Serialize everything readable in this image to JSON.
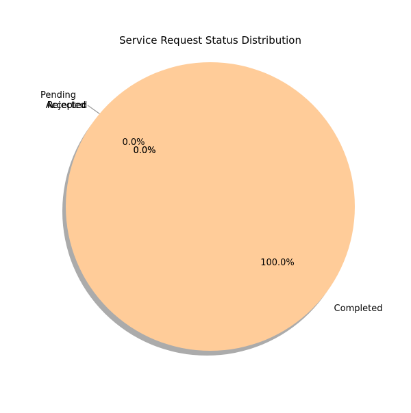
{
  "chart_data": {
    "type": "pie",
    "title": "Service Request Status Distribution",
    "categories": [
      "Pending",
      "Accepted",
      "Rejected",
      "Completed"
    ],
    "values": [
      0,
      0,
      0,
      100
    ],
    "percent_labels": [
      "0.0%",
      "0.0%",
      "0.0%",
      "100.0%"
    ],
    "colors": {
      "Pending": "#66b3ff",
      "Accepted": "#99ff99",
      "Rejected": "#ff9999",
      "Completed": "#ffcc99"
    },
    "shadow": true,
    "start_angle_deg": 140,
    "legend": "none"
  }
}
